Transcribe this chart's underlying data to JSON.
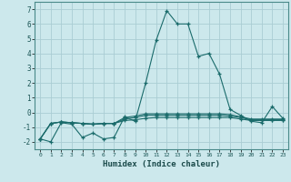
{
  "bg_color": "#cce8ec",
  "grid_color": "#aacdd4",
  "line_color": "#1a6b6b",
  "xlabel": "Humidex (Indice chaleur)",
  "ylim": [
    -2.5,
    7.5
  ],
  "xlim": [
    -0.5,
    23.5
  ],
  "yticks": [
    -2,
    -1,
    0,
    1,
    2,
    3,
    4,
    5,
    6,
    7
  ],
  "xticks": [
    0,
    1,
    2,
    3,
    4,
    5,
    6,
    7,
    8,
    9,
    10,
    11,
    12,
    13,
    14,
    15,
    16,
    17,
    18,
    19,
    20,
    21,
    22,
    23
  ],
  "line1": {
    "x": [
      0,
      1,
      2,
      3,
      4,
      5,
      6,
      7,
      8,
      9,
      10,
      11,
      12,
      13,
      14,
      15,
      16,
      17,
      18,
      19,
      20,
      21,
      22,
      23
    ],
    "y": [
      -1.8,
      -2.0,
      -0.7,
      -0.8,
      -1.7,
      -1.4,
      -1.8,
      -1.7,
      -0.3,
      -0.6,
      2.0,
      4.9,
      6.9,
      6.0,
      6.0,
      3.8,
      4.0,
      2.6,
      0.2,
      -0.2,
      -0.6,
      -0.7,
      0.4,
      -0.4
    ]
  },
  "line2": {
    "x": [
      0,
      1,
      2,
      3,
      4,
      5,
      6,
      7,
      8,
      9,
      10,
      11,
      12,
      13,
      14,
      15,
      16,
      17,
      18,
      19,
      20,
      21,
      22,
      23
    ],
    "y": [
      -1.8,
      -0.75,
      -0.65,
      -0.7,
      -0.75,
      -0.8,
      -0.75,
      -0.75,
      -0.55,
      -0.5,
      -0.4,
      -0.35,
      -0.35,
      -0.35,
      -0.35,
      -0.35,
      -0.35,
      -0.35,
      -0.35,
      -0.45,
      -0.55,
      -0.55,
      -0.55,
      -0.55
    ]
  },
  "line3": {
    "x": [
      0,
      1,
      2,
      3,
      4,
      5,
      6,
      7,
      8,
      9,
      10,
      11,
      12,
      13,
      14,
      15,
      16,
      17,
      18,
      19,
      20,
      21,
      22,
      23
    ],
    "y": [
      -1.8,
      -0.75,
      -0.65,
      -0.7,
      -0.75,
      -0.8,
      -0.75,
      -0.75,
      -0.45,
      -0.35,
      -0.2,
      -0.2,
      -0.2,
      -0.2,
      -0.2,
      -0.2,
      -0.2,
      -0.2,
      -0.25,
      -0.35,
      -0.5,
      -0.5,
      -0.5,
      -0.5
    ]
  },
  "line4": {
    "x": [
      0,
      1,
      2,
      3,
      4,
      5,
      6,
      7,
      8,
      9,
      10,
      11,
      12,
      13,
      14,
      15,
      16,
      17,
      18,
      19,
      20,
      21,
      22,
      23
    ],
    "y": [
      -1.8,
      -0.75,
      -0.65,
      -0.7,
      -0.75,
      -0.8,
      -0.75,
      -0.75,
      -0.35,
      -0.25,
      -0.1,
      -0.1,
      -0.1,
      -0.1,
      -0.1,
      -0.1,
      -0.1,
      -0.1,
      -0.15,
      -0.3,
      -0.45,
      -0.45,
      -0.45,
      -0.45
    ]
  }
}
